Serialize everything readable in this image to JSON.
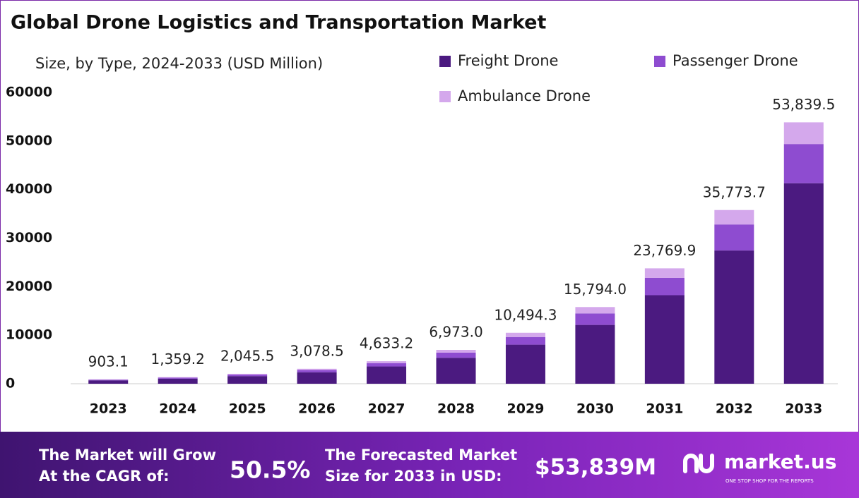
{
  "chart_data": {
    "type": "stacked-bar",
    "title": "Global Drone Logistics and Transportation Market",
    "subtitle": "Size, by Type, 2024-2033 (USD Million)",
    "categories": [
      "2023",
      "2024",
      "2025",
      "2026",
      "2027",
      "2028",
      "2029",
      "2030",
      "2031",
      "2032",
      "2033"
    ],
    "series": [
      {
        "name": "Freight Drone",
        "color": "#4b1a80",
        "values": [
          692.7,
          1042.5,
          1568.9,
          2361.2,
          3553.7,
          5348.3,
          8049.1,
          12114.0,
          18231.5,
          27438.4,
          41294.9
        ]
      },
      {
        "name": "Passenger Drone",
        "color": "#8e4cd0",
        "values": [
          135.5,
          203.9,
          306.8,
          461.8,
          695.0,
          1046.0,
          1574.1,
          2369.1,
          3565.5,
          5366.1,
          8075.9
        ]
      },
      {
        "name": "Ambulance Drone",
        "color": "#d4a8ec",
        "values": [
          74.9,
          112.8,
          169.8,
          255.5,
          384.5,
          578.7,
          871.1,
          1310.9,
          1972.9,
          2969.2,
          4468.7
        ]
      }
    ],
    "totals": {
      "values": [
        903.1,
        1359.2,
        2045.5,
        3078.5,
        4633.2,
        6973.0,
        10494.3,
        15794.0,
        23769.9,
        35773.7,
        53839.5
      ],
      "value_labels": [
        "903.1",
        "1,359.2",
        "2,045.5",
        "3,078.5",
        "4,633.2",
        "6,973.0",
        "10,494.3",
        "15,794.0",
        "23,769.9",
        "35,773.7",
        "53,839.5"
      ]
    },
    "ylim": [
      0,
      60000
    ],
    "yticks": [
      0,
      10000,
      20000,
      30000,
      40000,
      50000,
      60000
    ],
    "grid": false
  },
  "footer": {
    "cagr_text": [
      "The Market will Grow",
      "At the CAGR of:"
    ],
    "cagr": "50.5%",
    "forecast_text": [
      "The Forecasted Market",
      "Size for 2033 in USD:"
    ],
    "forecast": "$53,839M",
    "brand": "market.us",
    "tagline": "ONE STOP SHOP FOR THE REPORTS"
  }
}
